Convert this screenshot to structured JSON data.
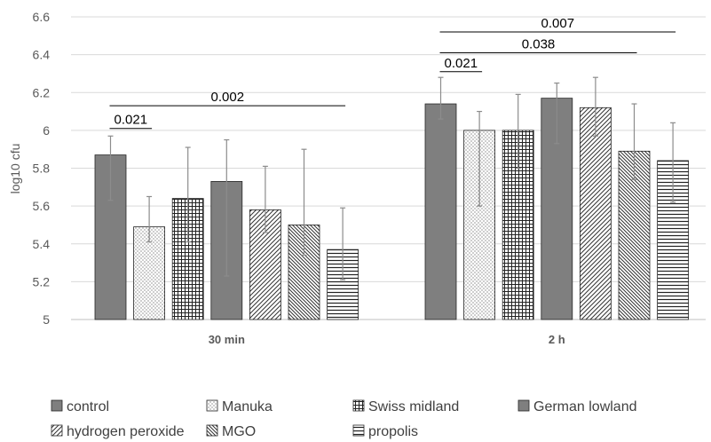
{
  "chart_data": {
    "type": "bar",
    "title": "",
    "xlabel": "",
    "ylabel": "log10 cfu",
    "ylim": [
      5,
      6.6
    ],
    "yticks": [
      5,
      5.2,
      5.4,
      5.6,
      5.8,
      6,
      6.2,
      6.4,
      6.6
    ],
    "grid": "horizontal",
    "categories": [
      "30 min",
      "2 h"
    ],
    "series": [
      {
        "name": "control",
        "values": [
          5.87,
          6.14
        ],
        "error_low": [
          5.63,
          6.06
        ],
        "error_high": [
          5.97,
          6.28
        ],
        "pattern": "solid"
      },
      {
        "name": "Manuka",
        "values": [
          5.49,
          6.0
        ],
        "error_low": [
          5.41,
          5.6
        ],
        "error_high": [
          5.65,
          6.1
        ],
        "pattern": "dots"
      },
      {
        "name": "Swiss midland",
        "values": [
          5.64,
          6.0
        ],
        "error_low": [
          5.41,
          5.8
        ],
        "error_high": [
          5.91,
          6.19
        ],
        "pattern": "grid"
      },
      {
        "name": "German lowland",
        "values": [
          5.73,
          6.17
        ],
        "error_low": [
          5.23,
          5.93
        ],
        "error_high": [
          5.95,
          6.25
        ],
        "pattern": "solid"
      },
      {
        "name": "hydrogen peroxide",
        "values": [
          5.58,
          6.12
        ],
        "error_low": [
          5.46,
          5.97
        ],
        "error_high": [
          5.81,
          6.28
        ],
        "pattern": "diag-up"
      },
      {
        "name": "MGO",
        "values": [
          5.5,
          5.89
        ],
        "error_low": [
          5.34,
          5.74
        ],
        "error_high": [
          5.9,
          6.14
        ],
        "pattern": "diag-down"
      },
      {
        "name": "propolis",
        "values": [
          5.37,
          5.84
        ],
        "error_low": [
          5.21,
          5.62
        ],
        "error_high": [
          5.59,
          6.04
        ],
        "pattern": "horizontal"
      }
    ],
    "annotations": [
      {
        "label": "0.021",
        "category": "30 min",
        "from": "control",
        "to": "Manuka",
        "level": 6.01
      },
      {
        "label": "0.002",
        "category": "30 min",
        "from": "control",
        "to": "propolis",
        "level": 6.13
      },
      {
        "label": "0.021",
        "category": "2 h",
        "from": "control",
        "to": "Manuka",
        "level": 6.31
      },
      {
        "label": "0.038",
        "category": "2 h",
        "from": "control",
        "to": "MGO",
        "level": 6.41
      },
      {
        "label": "0.007",
        "category": "2 h",
        "from": "control",
        "to": "propolis",
        "level": 6.52
      }
    ],
    "legend_position": "bottom",
    "colors": {
      "axis": "#595959",
      "grid": "#d9d9d9",
      "bar_stroke": "#262626",
      "solid_fill": "#7f7f7f",
      "error_bar": "#8c8c8c"
    }
  }
}
